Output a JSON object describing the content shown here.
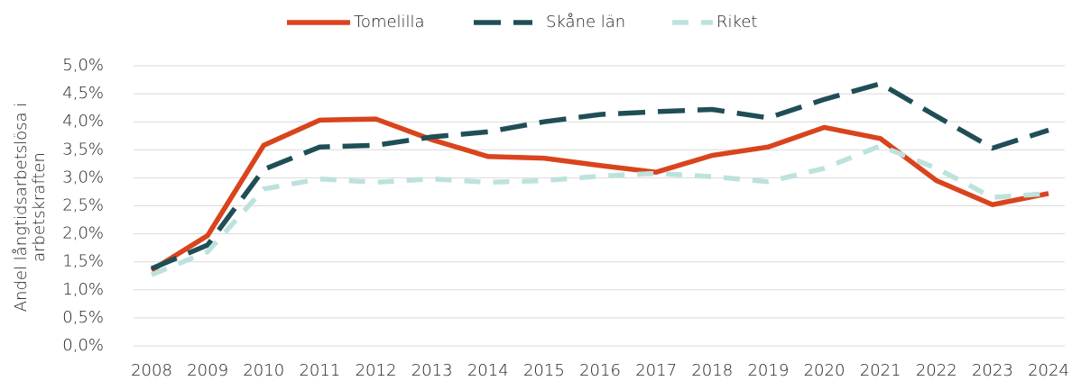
{
  "chart_data": {
    "type": "line",
    "ylabel": [
      "Andel långtidsarbetslösa i",
      "arbetskraften"
    ],
    "categories": [
      "2008",
      "2009",
      "2010",
      "2011",
      "2012",
      "2013",
      "2014",
      "2015",
      "2016",
      "2017",
      "2018",
      "2019",
      "2020",
      "2021",
      "2022",
      "2023",
      "2024"
    ],
    "series": [
      {
        "name": "Tomelilla",
        "color": "#d9441c",
        "dash": "solid",
        "values": [
          1.35,
          1.97,
          3.58,
          4.03,
          4.05,
          3.68,
          3.38,
          3.35,
          3.22,
          3.1,
          3.4,
          3.55,
          3.9,
          3.7,
          2.95,
          2.52,
          2.72
        ]
      },
      {
        "name": "Skåne län",
        "color": "#1f4e56",
        "dash": "long",
        "values": [
          1.38,
          1.8,
          3.15,
          3.55,
          3.58,
          3.73,
          3.82,
          4.0,
          4.13,
          4.18,
          4.22,
          4.07,
          4.4,
          4.68,
          4.1,
          3.53,
          3.85
        ]
      },
      {
        "name": "Riket",
        "color": "#bde2de",
        "dash": "short",
        "values": [
          1.27,
          1.68,
          2.8,
          2.98,
          2.92,
          2.98,
          2.92,
          2.95,
          3.03,
          3.08,
          3.02,
          2.93,
          3.17,
          3.57,
          3.17,
          2.65,
          2.72
        ]
      }
    ],
    "ylim": [
      0,
      5
    ],
    "yticks": [
      {
        "value": 0,
        "label": "0,0%"
      },
      {
        "value": 0.5,
        "label": "0,5%"
      },
      {
        "value": 1,
        "label": "1,0%"
      },
      {
        "value": 1.5,
        "label": "1,5%"
      },
      {
        "value": 2,
        "label": "2,0%"
      },
      {
        "value": 2.5,
        "label": "2,5%"
      },
      {
        "value": 3,
        "label": "3,0%"
      },
      {
        "value": 3.5,
        "label": "3,5%"
      },
      {
        "value": 4,
        "label": "4,0%"
      },
      {
        "value": 4.5,
        "label": "4,5%"
      },
      {
        "value": 5,
        "label": "5,0%"
      }
    ],
    "grid": true,
    "legend": "top"
  }
}
